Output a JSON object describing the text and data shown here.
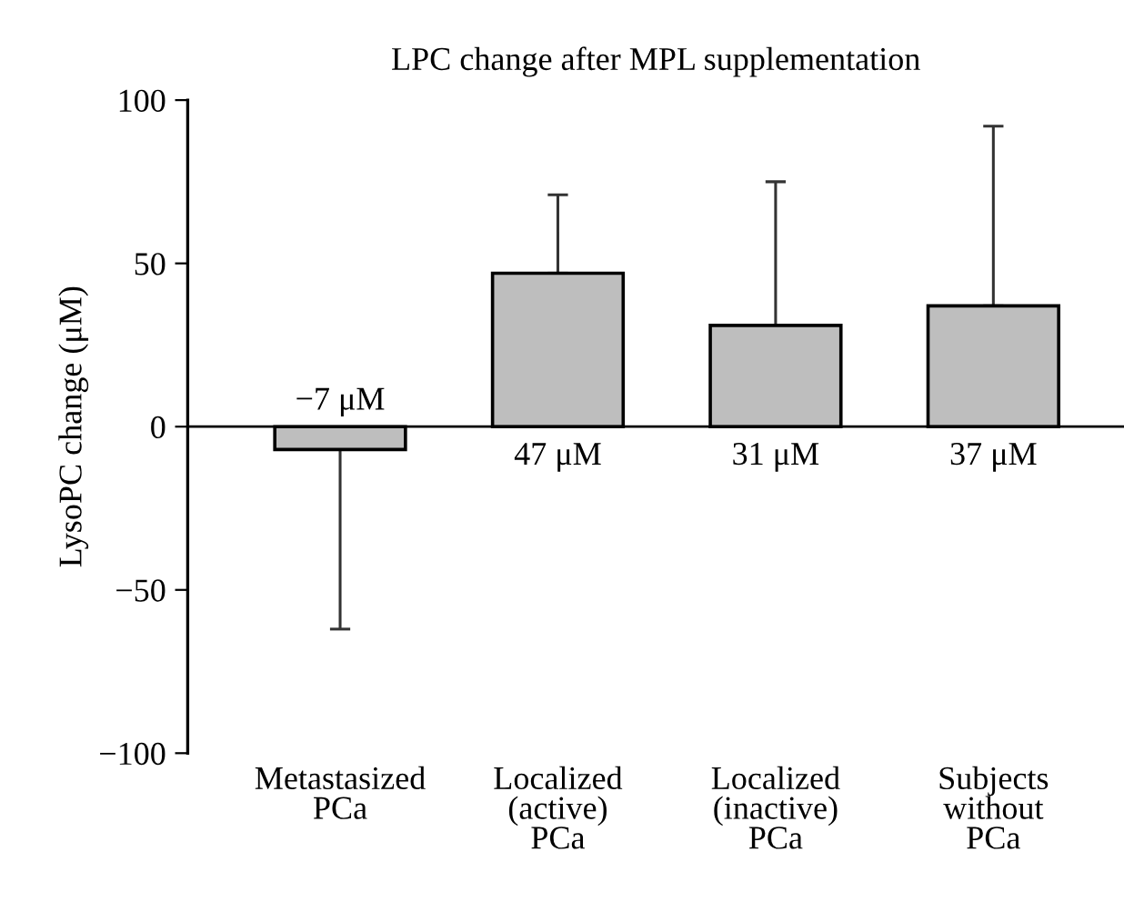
{
  "chart_data": {
    "type": "bar",
    "title": "LPC change after MPL supplementation",
    "ylabel": "LysoPC change (μM)",
    "categories": [
      "Metastasized\nPCa",
      "Localized\n(active)\nPCa",
      "Localized\n(inactive)\nPCa",
      "Subjects\nwithout\nPCa"
    ],
    "values": [
      -7,
      47,
      31,
      37
    ],
    "errors": [
      [
        -62,
        -7
      ],
      [
        47,
        71
      ],
      [
        31,
        75
      ],
      [
        37,
        92
      ]
    ],
    "value_labels": [
      "−7 μM",
      "47 μM",
      "31 μM",
      "37 μM"
    ],
    "color": "#bebebe",
    "ylim": [
      -100,
      100
    ],
    "yticks": [
      {
        "value": -100,
        "label": "−100"
      },
      {
        "value": -50,
        "label": "−50"
      },
      0,
      50,
      100
    ],
    "legend": false
  }
}
